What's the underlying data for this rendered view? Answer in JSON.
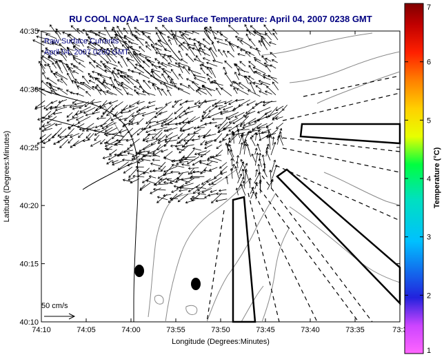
{
  "chart_data": {
    "type": "vector-field",
    "title": "RU COOL  NOAA−17  Sea Surface Temperature:  April 04, 2007 0238 GMT",
    "annotations": [
      "Raw Surface Currents",
      "April 04, 2007 0200 GMT"
    ],
    "xlabel": "Longitude (Degrees:Minutes)",
    "ylabel": "Latitude (Degrees:Minutes)",
    "x_ticks": [
      "74:10",
      "74:05",
      "74:00",
      "73:55",
      "73:50",
      "73:45",
      "73:40",
      "73:35",
      "73:3"
    ],
    "y_ticks": [
      "40:10",
      "40:15",
      "40:20",
      "40:25",
      "40:30",
      "40:35"
    ],
    "xlim_min_west": [
      -10,
      40
    ],
    "ylim_min": [
      10,
      35
    ],
    "grid": false,
    "scale_label": "50 cm/s",
    "colorbar": {
      "label": "Temperature (°C)",
      "ticks": [
        "1",
        "2",
        "3",
        "4",
        "5",
        "6",
        "7"
      ],
      "range": [
        1,
        7
      ]
    },
    "vectors_note": "surface current vectors concentrated in the upper-left quadrant (Lower NY Bay / harbor entrance)",
    "land_color": "#ffffff",
    "coast_color": "#000000",
    "contour_color": "#888888",
    "vector_color": "#000000",
    "title_color": "#000080"
  }
}
